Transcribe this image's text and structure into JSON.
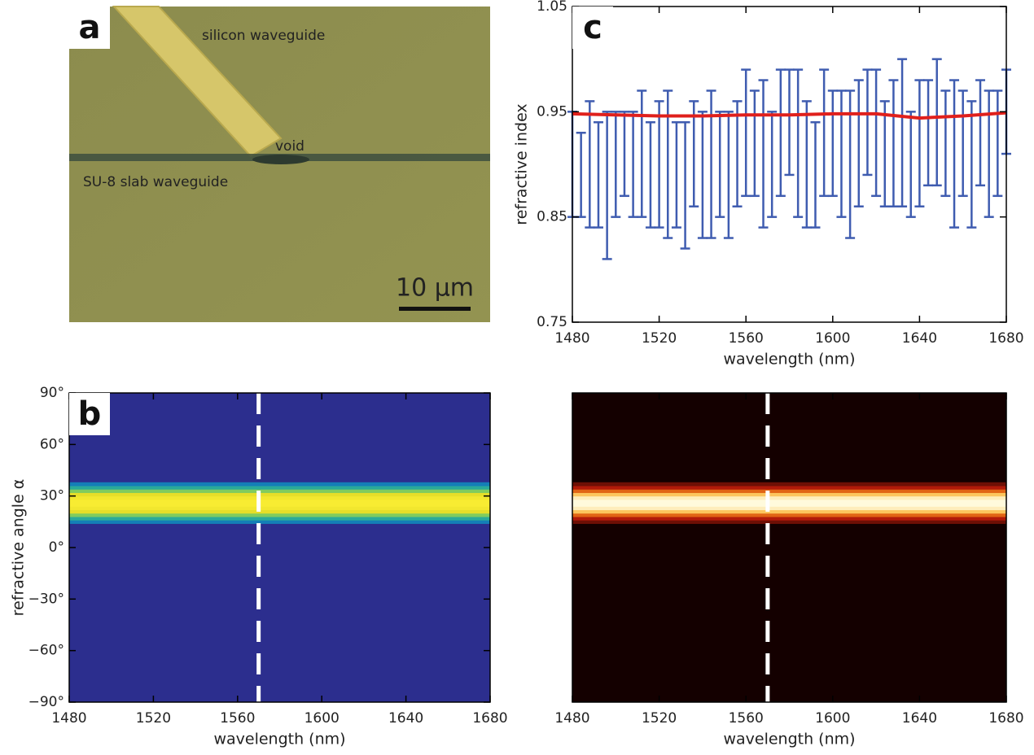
{
  "micrograph": {
    "panel_label": "a",
    "labels": [
      "silicon waveguide",
      "void",
      "SU-8 slab waveguide"
    ],
    "scale_bar": "10 µm"
  },
  "chart_data": [
    {
      "type": "errorbar",
      "panel_label": "c",
      "ylabel": "refractive index",
      "xlabel": "wavelength (nm)",
      "x": [
        1480,
        1484,
        1488,
        1492,
        1496,
        1500,
        1504,
        1508,
        1512,
        1516,
        1520,
        1524,
        1528,
        1532,
        1536,
        1540,
        1544,
        1548,
        1552,
        1556,
        1560,
        1564,
        1568,
        1572,
        1576,
        1580,
        1584,
        1588,
        1592,
        1596,
        1600,
        1604,
        1608,
        1612,
        1616,
        1620,
        1624,
        1628,
        1632,
        1636,
        1640,
        1644,
        1648,
        1652,
        1656,
        1660,
        1664,
        1668,
        1672,
        1676,
        1680
      ],
      "values": [
        0.9,
        0.89,
        0.9,
        0.89,
        0.88,
        0.9,
        0.91,
        0.9,
        0.91,
        0.89,
        0.9,
        0.9,
        0.89,
        0.88,
        0.91,
        0.89,
        0.9,
        0.9,
        0.89,
        0.91,
        0.93,
        0.92,
        0.91,
        0.9,
        0.93,
        0.94,
        0.92,
        0.9,
        0.89,
        0.93,
        0.92,
        0.91,
        0.9,
        0.92,
        0.94,
        0.93,
        0.91,
        0.92,
        0.93,
        0.9,
        0.92,
        0.93,
        0.94,
        0.92,
        0.91,
        0.92,
        0.9,
        0.93,
        0.91,
        0.92,
        0.95
      ],
      "errors": [
        0.05,
        0.04,
        0.06,
        0.05,
        0.07,
        0.05,
        0.04,
        0.05,
        0.06,
        0.05,
        0.06,
        0.07,
        0.05,
        0.06,
        0.05,
        0.06,
        0.07,
        0.05,
        0.06,
        0.05,
        0.06,
        0.05,
        0.07,
        0.05,
        0.06,
        0.05,
        0.07,
        0.06,
        0.05,
        0.06,
        0.05,
        0.06,
        0.07,
        0.06,
        0.05,
        0.06,
        0.05,
        0.06,
        0.07,
        0.05,
        0.06,
        0.05,
        0.06,
        0.05,
        0.07,
        0.05,
        0.06,
        0.05,
        0.06,
        0.05,
        0.04
      ],
      "color": "#3f5cb0",
      "line": {
        "x": [
          1480,
          1500,
          1520,
          1540,
          1560,
          1580,
          1600,
          1620,
          1640,
          1660,
          1680
        ],
        "values": [
          0.948,
          0.947,
          0.946,
          0.946,
          0.947,
          0.947,
          0.948,
          0.948,
          0.944,
          0.946,
          0.949
        ],
        "color": "#e0201c"
      },
      "xlim": [
        1480,
        1680
      ],
      "xticks": [
        1480,
        1520,
        1560,
        1600,
        1640,
        1680
      ],
      "ylim": [
        0.75,
        1.05
      ],
      "yticks": [
        0.75,
        0.85,
        0.95,
        1.05
      ]
    },
    {
      "type": "heatmap",
      "panel_label": "b",
      "ylabel": "refractive angle α",
      "xlabel": "wavelength (nm)",
      "colormap": "parula",
      "angle_bins": [
        14,
        16,
        18,
        20,
        22,
        24,
        26,
        28,
        30,
        32,
        34,
        36,
        38
      ],
      "intensity": [
        0.3,
        0.5,
        0.7,
        0.85,
        0.95,
        1,
        1,
        0.95,
        0.85,
        0.7,
        0.5,
        0.3
      ],
      "marker_x": 1570,
      "xlim": [
        1480,
        1680
      ],
      "xticks": [
        1480,
        1520,
        1560,
        1600,
        1640,
        1680
      ],
      "ylim": [
        -90,
        90
      ],
      "yticks": [
        {
          "value": -90,
          "label": "−90°"
        },
        {
          "value": -60,
          "label": "−60°"
        },
        {
          "value": -30,
          "label": "−30°"
        },
        {
          "value": 0,
          "label": "0°"
        },
        {
          "value": 30,
          "label": "30°"
        },
        {
          "value": 60,
          "label": "60°"
        },
        {
          "value": 90,
          "label": "90°"
        }
      ]
    },
    {
      "type": "heatmap",
      "xlabel": "wavelength (nm)",
      "colormap": "hot",
      "angle_bins": [
        14,
        16,
        18,
        20,
        22,
        24,
        26,
        28,
        30,
        32,
        34,
        36,
        38
      ],
      "intensity": [
        0.2,
        0.35,
        0.55,
        0.8,
        0.95,
        1,
        1,
        0.95,
        0.8,
        0.55,
        0.35,
        0.2
      ],
      "marker_x": 1570,
      "xlim": [
        1480,
        1680
      ],
      "xticks": [
        1480,
        1520,
        1560,
        1600,
        1640,
        1680
      ],
      "ylim": [
        -90,
        90
      ]
    }
  ]
}
